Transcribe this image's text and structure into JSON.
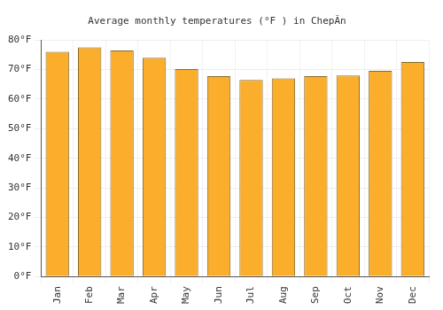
{
  "chart_data": {
    "type": "bar",
    "title": "Average monthly temperatures (°F ) in ChepĂn",
    "categories": [
      "Jan",
      "Feb",
      "Mar",
      "Apr",
      "May",
      "Jun",
      "Jul",
      "Aug",
      "Sep",
      "Oct",
      "Nov",
      "Dec"
    ],
    "values": [
      76,
      77.5,
      76.5,
      74,
      70.2,
      67.8,
      66.5,
      67,
      67.8,
      68,
      69.6,
      72.6
    ],
    "color": "#fbad2c",
    "ylim": [
      0,
      80
    ],
    "yticks": [
      {
        "value": 0,
        "label": "0°F"
      },
      {
        "value": 10,
        "label": "10°F"
      },
      {
        "value": 20,
        "label": "20°F"
      },
      {
        "value": 30,
        "label": "30°F"
      },
      {
        "value": 40,
        "label": "40°F"
      },
      {
        "value": 50,
        "label": "50°F"
      },
      {
        "value": 60,
        "label": "60°F"
      },
      {
        "value": 70,
        "label": "70°F"
      },
      {
        "value": 80,
        "label": "80°F"
      }
    ],
    "grid": true
  }
}
